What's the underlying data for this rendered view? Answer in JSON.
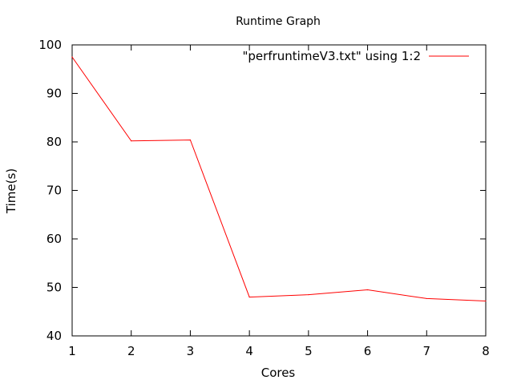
{
  "chart_data": {
    "type": "line",
    "title": "Runtime Graph",
    "xlabel": "Cores",
    "ylabel": "Time(s)",
    "xlim": [
      1,
      8
    ],
    "ylim": [
      40,
      100
    ],
    "x_ticks": [
      "1",
      "2",
      "3",
      "4",
      "5",
      "6",
      "7",
      "8"
    ],
    "y_ticks": [
      "40",
      "50",
      "60",
      "70",
      "80",
      "90",
      "100"
    ],
    "grid": false,
    "legend_position": "top-right",
    "series": [
      {
        "name": "\"perfruntimeV3.txt\" using 1:2",
        "color": "#ff0000",
        "x": [
          1,
          2,
          3,
          4,
          5,
          6,
          7,
          8
        ],
        "y": [
          97.5,
          80.2,
          80.4,
          48.0,
          48.5,
          49.5,
          47.7,
          47.2
        ]
      }
    ]
  }
}
